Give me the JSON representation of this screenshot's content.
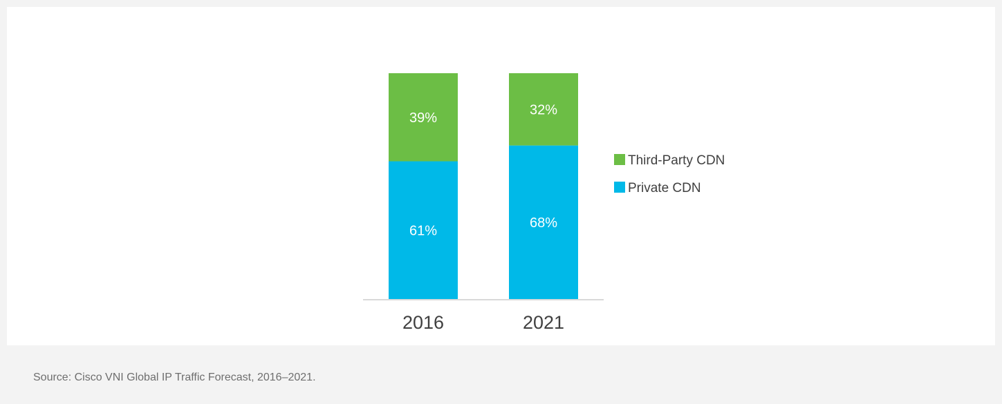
{
  "chart_data": {
    "type": "bar",
    "stacked": true,
    "percent_stacked": true,
    "categories": [
      "2016",
      "2021"
    ],
    "series": [
      {
        "name": "Private CDN",
        "values": [
          61,
          68
        ],
        "labels": [
          "61%",
          "68%"
        ],
        "color": "#00b9e8"
      },
      {
        "name": "Third-Party CDN",
        "values": [
          39,
          32
        ],
        "labels": [
          "39%",
          "32%"
        ],
        "color": "#6cbe45"
      }
    ],
    "ylim": [
      0,
      100
    ],
    "legend_position": "right",
    "grid": false,
    "title": "",
    "xlabel": "",
    "ylabel": ""
  },
  "legend": [
    {
      "label": "Third-Party CDN",
      "color": "#6cbe45",
      "icon": "square-swatch"
    },
    {
      "label": "Private CDN",
      "color": "#00b9e8",
      "icon": "square-swatch"
    }
  ],
  "source_note": "Source: Cisco VNI Global IP Traffic Forecast, 2016–2021.",
  "colors": {
    "axis": "#d9d9d9",
    "tick_text": "#404040",
    "data_label": "#ffffff",
    "background": "#f3f3f3",
    "panel": "#ffffff"
  }
}
